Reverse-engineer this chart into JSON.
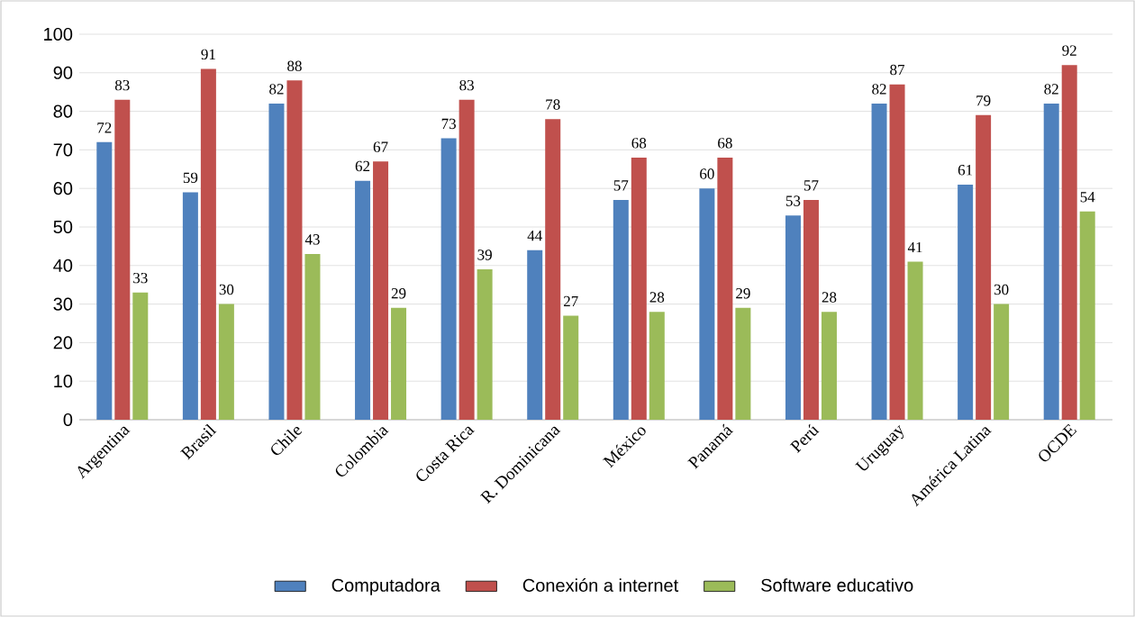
{
  "chart_data": {
    "type": "bar",
    "categories": [
      "Argentina",
      "Brasil",
      "Chile",
      "Colombia",
      "Costa Rica",
      "R. Dominicana",
      "México",
      "Panamá",
      "Perú",
      "Uruguay",
      "América Latina",
      "OCDE"
    ],
    "series": [
      {
        "name": "Computadora",
        "color": "#4f81bd",
        "values": [
          72,
          59,
          82,
          62,
          73,
          44,
          57,
          60,
          53,
          82,
          61,
          82
        ]
      },
      {
        "name": "Conexión a internet",
        "color": "#c0504d",
        "values": [
          83,
          91,
          88,
          67,
          83,
          78,
          68,
          68,
          57,
          87,
          79,
          92
        ]
      },
      {
        "name": "Software educativo",
        "color": "#9bbb59",
        "values": [
          33,
          30,
          43,
          29,
          39,
          27,
          28,
          29,
          28,
          41,
          30,
          54
        ]
      }
    ],
    "ylim": [
      0,
      100
    ],
    "yticks": [
      0,
      10,
      20,
      30,
      40,
      50,
      60,
      70,
      80,
      90,
      100
    ],
    "grid": "y",
    "legend": "bottom",
    "data_labels": true
  }
}
